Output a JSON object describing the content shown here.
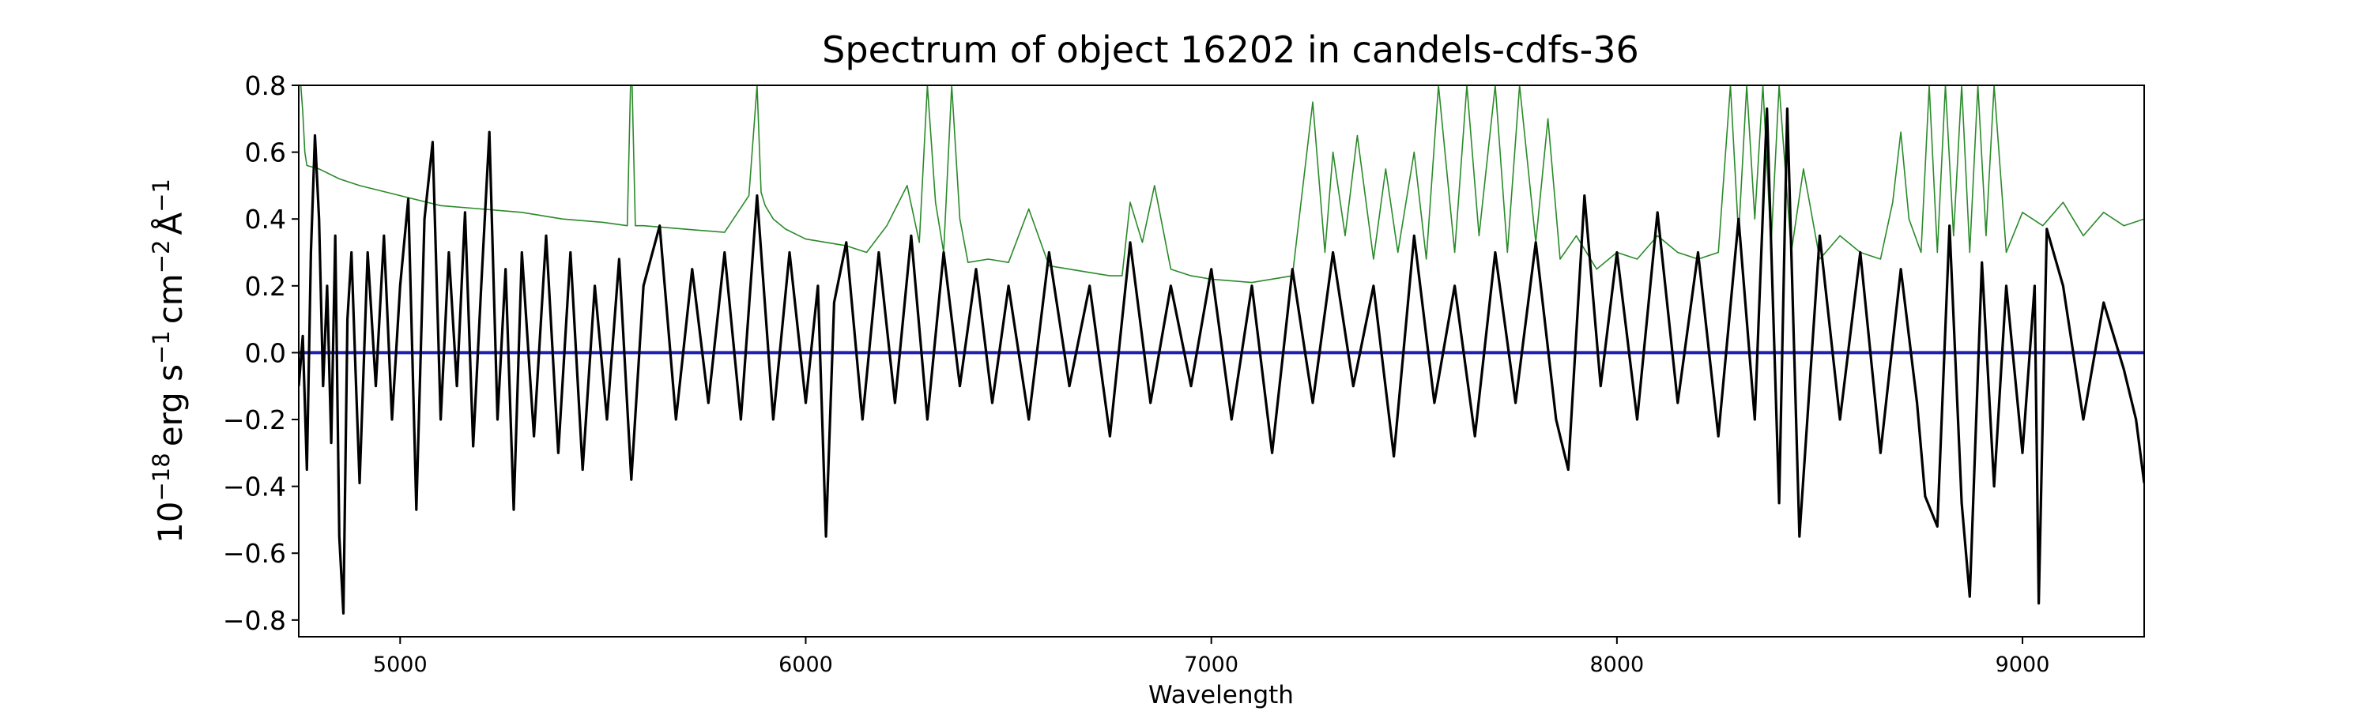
{
  "chart_data": {
    "type": "line",
    "title": "Spectrum of object 16202 in candels-cdfs-36",
    "xlabel": "Wavelength",
    "ylabel": {
      "base": "10",
      "base_exp": "−18",
      "unit1": "erg s",
      "unit1_exp": "−1",
      "unit2": "cm",
      "unit2_exp": "−2",
      "unit3": "Å",
      "unit3_exp": "−1"
    },
    "xlim": [
      4750,
      9300
    ],
    "ylim": [
      -0.85,
      0.8
    ],
    "x_ticks": [
      5000,
      6000,
      7000,
      8000,
      9000
    ],
    "x_tick_labels": [
      "5000",
      "6000",
      "7000",
      "8000",
      "9000"
    ],
    "y_ticks": [
      -0.8,
      -0.6,
      -0.4,
      -0.2,
      0.0,
      0.2,
      0.4,
      0.6,
      0.8
    ],
    "y_tick_labels": [
      "−0.8",
      "−0.6",
      "−0.4",
      "−0.2",
      "0.0",
      "0.2",
      "0.4",
      "0.6",
      "0.8"
    ],
    "grid": false,
    "legend": "none",
    "series": [
      {
        "role": "flux",
        "color": "#000000",
        "x": [
          4750,
          4760,
          4770,
          4780,
          4790,
          4800,
          4810,
          4820,
          4830,
          4840,
          4850,
          4860,
          4870,
          4880,
          4890,
          4900,
          4920,
          4940,
          4960,
          4980,
          5000,
          5020,
          5040,
          5060,
          5080,
          5100,
          5120,
          5140,
          5160,
          5180,
          5200,
          5220,
          5240,
          5260,
          5280,
          5300,
          5330,
          5360,
          5390,
          5420,
          5450,
          5480,
          5510,
          5540,
          5570,
          5600,
          5640,
          5680,
          5720,
          5760,
          5800,
          5840,
          5880,
          5920,
          5960,
          6000,
          6030,
          6050,
          6070,
          6100,
          6140,
          6180,
          6220,
          6260,
          6300,
          6340,
          6380,
          6420,
          6460,
          6500,
          6550,
          6600,
          6650,
          6700,
          6750,
          6800,
          6850,
          6900,
          6950,
          7000,
          7050,
          7100,
          7150,
          7200,
          7250,
          7300,
          7350,
          7400,
          7450,
          7500,
          7550,
          7600,
          7650,
          7700,
          7750,
          7800,
          7850,
          7880,
          7920,
          7960,
          8000,
          8050,
          8100,
          8150,
          8200,
          8250,
          8300,
          8340,
          8370,
          8400,
          8420,
          8450,
          8500,
          8550,
          8600,
          8650,
          8700,
          8740,
          8760,
          8790,
          8820,
          8850,
          8870,
          8900,
          8930,
          8960,
          9000,
          9030,
          9040,
          9060,
          9100,
          9150,
          9200,
          9250,
          9280,
          9300
        ],
        "y": [
          -0.1,
          0.05,
          -0.35,
          0.3,
          0.65,
          0.4,
          -0.1,
          0.2,
          -0.27,
          0.35,
          -0.55,
          -0.78,
          0.1,
          0.3,
          -0.05,
          -0.39,
          0.3,
          -0.1,
          0.35,
          -0.2,
          0.2,
          0.46,
          -0.47,
          0.4,
          0.63,
          -0.2,
          0.3,
          -0.1,
          0.42,
          -0.28,
          0.2,
          0.66,
          -0.2,
          0.25,
          -0.47,
          0.3,
          -0.25,
          0.35,
          -0.3,
          0.3,
          -0.35,
          0.2,
          -0.2,
          0.28,
          -0.38,
          0.2,
          0.38,
          -0.2,
          0.25,
          -0.15,
          0.3,
          -0.2,
          0.47,
          -0.2,
          0.3,
          -0.15,
          0.2,
          -0.55,
          0.15,
          0.33,
          -0.2,
          0.3,
          -0.15,
          0.35,
          -0.2,
          0.3,
          -0.1,
          0.25,
          -0.15,
          0.2,
          -0.2,
          0.3,
          -0.1,
          0.2,
          -0.25,
          0.33,
          -0.15,
          0.2,
          -0.1,
          0.25,
          -0.2,
          0.2,
          -0.3,
          0.25,
          -0.15,
          0.3,
          -0.1,
          0.2,
          -0.31,
          0.35,
          -0.15,
          0.2,
          -0.25,
          0.3,
          -0.15,
          0.33,
          -0.2,
          -0.35,
          0.47,
          -0.1,
          0.3,
          -0.2,
          0.42,
          -0.15,
          0.3,
          -0.25,
          0.4,
          -0.2,
          0.73,
          -0.45,
          0.73,
          -0.55,
          0.35,
          -0.2,
          0.3,
          -0.3,
          0.25,
          -0.15,
          -0.43,
          -0.52,
          0.38,
          -0.45,
          -0.73,
          0.27,
          -0.4,
          0.2,
          -0.3,
          0.2,
          -0.75,
          0.37,
          0.2,
          -0.2,
          0.15,
          -0.05,
          -0.2,
          -0.39
        ]
      },
      {
        "role": "error",
        "color": "#2a8a2a",
        "x": [
          4750,
          4755,
          4760,
          4765,
          4770,
          4800,
          4850,
          4900,
          5000,
          5100,
          5200,
          5300,
          5400,
          5500,
          5560,
          5568,
          5572,
          5580,
          5600,
          5700,
          5800,
          5860,
          5880,
          5890,
          5900,
          5920,
          5950,
          6000,
          6100,
          6150,
          6200,
          6250,
          6280,
          6300,
          6320,
          6340,
          6360,
          6380,
          6400,
          6450,
          6500,
          6550,
          6600,
          6650,
          6700,
          6750,
          6780,
          6800,
          6830,
          6860,
          6900,
          6950,
          7000,
          7100,
          7200,
          7250,
          7280,
          7300,
          7330,
          7360,
          7400,
          7430,
          7460,
          7500,
          7530,
          7560,
          7600,
          7630,
          7660,
          7700,
          7730,
          7760,
          7800,
          7830,
          7860,
          7900,
          7950,
          8000,
          8050,
          8100,
          8150,
          8200,
          8250,
          8280,
          8300,
          8320,
          8340,
          8360,
          8380,
          8400,
          8430,
          8460,
          8500,
          8550,
          8600,
          8650,
          8680,
          8700,
          8720,
          8750,
          8770,
          8790,
          8810,
          8830,
          8850,
          8870,
          8890,
          8910,
          8930,
          8960,
          9000,
          9050,
          9100,
          9150,
          9200,
          9250,
          9300
        ],
        "y": [
          0.8,
          0.8,
          0.72,
          0.6,
          0.56,
          0.55,
          0.52,
          0.5,
          0.47,
          0.44,
          0.43,
          0.42,
          0.4,
          0.39,
          0.38,
          0.8,
          0.8,
          0.38,
          0.38,
          0.37,
          0.36,
          0.47,
          0.8,
          0.48,
          0.44,
          0.4,
          0.37,
          0.34,
          0.32,
          0.3,
          0.38,
          0.5,
          0.33,
          0.8,
          0.45,
          0.3,
          0.8,
          0.4,
          0.27,
          0.28,
          0.27,
          0.43,
          0.26,
          0.25,
          0.24,
          0.23,
          0.23,
          0.45,
          0.33,
          0.5,
          0.25,
          0.23,
          0.22,
          0.21,
          0.23,
          0.75,
          0.3,
          0.6,
          0.35,
          0.65,
          0.28,
          0.55,
          0.3,
          0.6,
          0.28,
          0.8,
          0.3,
          0.8,
          0.35,
          0.8,
          0.3,
          0.8,
          0.33,
          0.7,
          0.28,
          0.35,
          0.25,
          0.3,
          0.28,
          0.35,
          0.3,
          0.28,
          0.3,
          0.8,
          0.35,
          0.8,
          0.4,
          0.8,
          0.32,
          0.8,
          0.3,
          0.55,
          0.28,
          0.35,
          0.3,
          0.28,
          0.45,
          0.66,
          0.4,
          0.3,
          0.8,
          0.3,
          0.8,
          0.35,
          0.8,
          0.3,
          0.8,
          0.35,
          0.8,
          0.3,
          0.42,
          0.38,
          0.45,
          0.35,
          0.42,
          0.38,
          0.4
        ]
      },
      {
        "role": "model",
        "color": "#1f1fb4",
        "x": [
          4750,
          9300
        ],
        "y": [
          0.0,
          0.0
        ]
      }
    ]
  }
}
